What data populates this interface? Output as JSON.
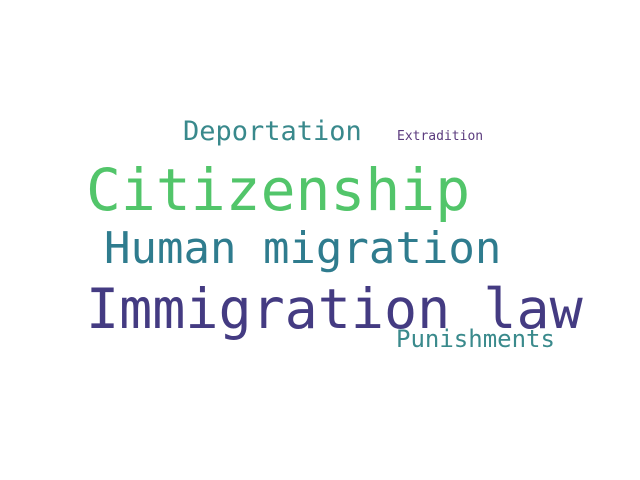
{
  "words": [
    {
      "text": "Deportation",
      "color": "#39898c"
    },
    {
      "text": "Extradition",
      "color": "#5b3b7e"
    },
    {
      "text": "Citizenship",
      "color": "#52c56a"
    },
    {
      "text": "Human migration",
      "color": "#2f7c8e"
    },
    {
      "text": "Immigration law",
      "color": "#443b82"
    },
    {
      "text": "Punishments",
      "color": "#3a8a8c"
    }
  ]
}
